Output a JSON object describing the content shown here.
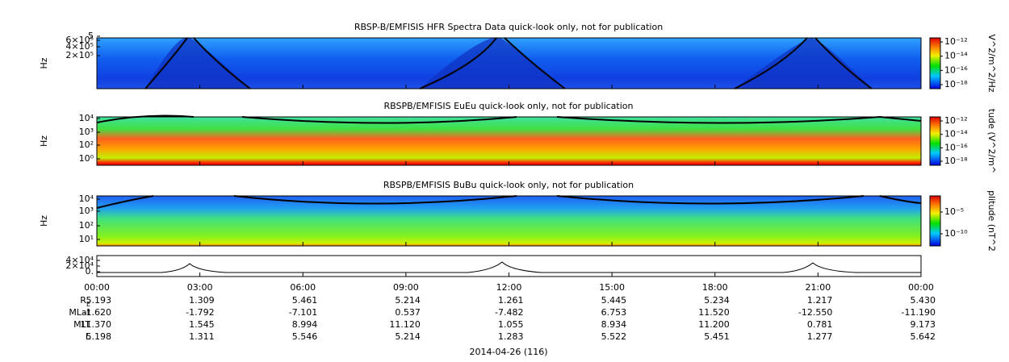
{
  "panels": [
    {
      "title": "RBSP-B/EMFISIS  HFR Spectra Data quick-look only, not for publication",
      "ylabel": "Hz",
      "yticks": [
        "5",
        "6×10⁵",
        "4×10⁵",
        "2×10⁵"
      ],
      "colorbar_label": "V^2/m^2/Hz",
      "colorbar_ticks": [
        "10⁻¹²",
        "10⁻¹⁴",
        "10⁻¹⁶",
        "10⁻¹⁸"
      ]
    },
    {
      "title": "RBSPB/EMFISIS  EuEu quick-look only, not for publication",
      "ylabel": "Hz",
      "yticks": [
        "10⁴",
        "10³",
        "10²",
        "10⁰"
      ],
      "colorbar_label": "tude (V^2/m^",
      "colorbar_ticks": [
        "10⁻¹²",
        "10⁻¹⁴",
        "10⁻¹⁶",
        "10⁻¹⁸"
      ]
    },
    {
      "title": "RBSPB/EMFISIS  BuBu quick-look only, not for publication",
      "ylabel": "Hz",
      "yticks": [
        "10⁴",
        "10³",
        "10²",
        "10¹"
      ],
      "colorbar_label": "plitude (nT^2",
      "colorbar_ticks": [
        "10⁻⁵",
        "10⁻¹⁰"
      ]
    },
    {
      "yticks": [
        "4×10⁴",
        "2×10⁴",
        "0."
      ]
    }
  ],
  "time_ticks": [
    "00:00",
    "03:00",
    "06:00",
    "09:00",
    "12:00",
    "15:00",
    "18:00",
    "21:00",
    "00:00"
  ],
  "ephemeris": [
    {
      "label": "R",
      "sub": "E",
      "values": [
        "5.193",
        "1.309",
        "5.461",
        "5.214",
        "1.261",
        "5.445",
        "5.234",
        "1.217",
        "5.430"
      ]
    },
    {
      "label": "MLat",
      "values": [
        "-1.620",
        "-1.792",
        "-7.101",
        "0.537",
        "-7.482",
        "6.753",
        "11.520",
        "-12.550",
        "-11.190"
      ]
    },
    {
      "label": "MLT",
      "values": [
        "11.370",
        "1.545",
        "8.994",
        "11.120",
        "1.055",
        "8.934",
        "11.200",
        "0.781",
        "9.173"
      ]
    },
    {
      "label": "L",
      "values": [
        "5.198",
        "1.311",
        "5.546",
        "5.214",
        "1.283",
        "5.522",
        "5.451",
        "1.277",
        "5.642"
      ]
    }
  ],
  "xlabel": "2014-04-26 (116)"
}
